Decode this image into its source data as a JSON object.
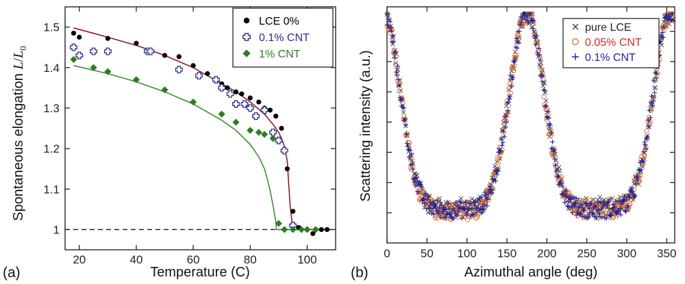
{
  "chart_data": [
    {
      "type": "scatter",
      "panel_label": "(a)",
      "xlabel": "Temperature (C)",
      "ylabel": "Spontaneous elongation",
      "ylabel_symbol_num": "L",
      "ylabel_symbol_den": "L",
      "ylabel_symbol_sub": "0",
      "xlim": [
        15,
        110
      ],
      "ylim": [
        0.95,
        1.55
      ],
      "xticks": [
        20,
        40,
        60,
        80,
        100
      ],
      "yticks": [
        1,
        1.1,
        1.2,
        1.3,
        1.4,
        1.5
      ],
      "ytick_labels": [
        "1",
        "1.1",
        "1.2",
        "1.3",
        "1.4",
        "1.5"
      ],
      "reference_line": {
        "y": 1,
        "style": "dashed"
      },
      "legend_position": "top-right",
      "series": [
        {
          "name": "LCE 0%",
          "marker": "filled-circle",
          "color": "#000000",
          "x": [
            18,
            20,
            30,
            40,
            50,
            55,
            60,
            65,
            70,
            72,
            75,
            77,
            80,
            83,
            85,
            87,
            89,
            91,
            93,
            95,
            97,
            100,
            102,
            105,
            107
          ],
          "y": [
            1.485,
            1.475,
            1.472,
            1.46,
            1.43,
            1.427,
            1.405,
            1.385,
            1.36,
            1.35,
            1.34,
            1.335,
            1.325,
            1.315,
            1.3,
            1.295,
            1.28,
            1.25,
            1.15,
            1.045,
            1.005,
            1.0,
            0.99,
            1.0,
            1.0
          ]
        },
        {
          "name": "0.1% CNT",
          "marker": "hollow-cross",
          "color": "#2a2a8c",
          "x": [
            18,
            20,
            25,
            30,
            44,
            45,
            55,
            62,
            68,
            70,
            73,
            75,
            78,
            80,
            82,
            85,
            88,
            90,
            92,
            95
          ],
          "y": [
            1.45,
            1.43,
            1.44,
            1.44,
            1.44,
            1.44,
            1.395,
            1.38,
            1.37,
            1.35,
            1.335,
            1.31,
            1.31,
            1.3,
            1.28,
            1.295,
            1.24,
            1.22,
            1.195,
            1.01
          ]
        },
        {
          "name": "1% CNT",
          "marker": "filled-diamond",
          "color": "#2e7d22",
          "x": [
            18,
            25,
            30,
            40,
            50,
            60,
            70,
            75,
            80,
            83,
            85,
            88,
            90,
            92,
            95,
            98,
            100,
            103
          ],
          "y": [
            1.42,
            1.4,
            1.39,
            1.37,
            1.345,
            1.315,
            1.285,
            1.265,
            1.245,
            1.24,
            1.235,
            1.225,
            1.015,
            1.0,
            1.0,
            1.0,
            1.0,
            1.0
          ]
        }
      ],
      "fit_lines": [
        {
          "color": "#8b1a1a",
          "x": [
            18,
            30,
            40,
            50,
            60,
            70,
            75,
            80,
            85,
            88,
            90,
            91,
            92,
            93,
            94,
            95,
            100,
            108
          ],
          "y": [
            1.498,
            1.475,
            1.455,
            1.43,
            1.4,
            1.36,
            1.34,
            1.315,
            1.285,
            1.26,
            1.24,
            1.225,
            1.205,
            1.17,
            1.06,
            1.0,
            1.0,
            1.0
          ]
        },
        {
          "color": "#3e8e2e",
          "x": [
            18,
            30,
            40,
            50,
            60,
            70,
            75,
            80,
            83,
            85,
            86,
            87,
            88,
            88.5,
            89,
            89.2,
            92,
            100
          ],
          "y": [
            1.405,
            1.385,
            1.365,
            1.34,
            1.31,
            1.27,
            1.245,
            1.21,
            1.18,
            1.15,
            1.125,
            1.095,
            1.06,
            1.04,
            1.02,
            1.0,
            1.0,
            1.0
          ]
        }
      ]
    },
    {
      "type": "scatter",
      "panel_label": "(b)",
      "xlabel": "Azimuthal angle (deg)",
      "ylabel": "Scattering intensity (a.u.)",
      "xlim": [
        0,
        360
      ],
      "ylim": [
        0,
        1
      ],
      "xticks": [
        0,
        50,
        100,
        150,
        200,
        250,
        300,
        350
      ],
      "legend_position": "top-right",
      "profile": {
        "baseline": 0.14,
        "peak_height": 0.84,
        "peak_centers": [
          175,
          355,
          -5
        ],
        "peak_width_deg": 30,
        "clip_top": 0.97
      },
      "series": [
        {
          "name": "pure LCE",
          "marker": "x",
          "color": "#3a3a3a"
        },
        {
          "name": "0.05% CNT",
          "marker": "hollow-circle",
          "color": "#e06a28"
        },
        {
          "name": "0.1% CNT",
          "marker": "plus",
          "color": "#22229a"
        }
      ]
    }
  ]
}
